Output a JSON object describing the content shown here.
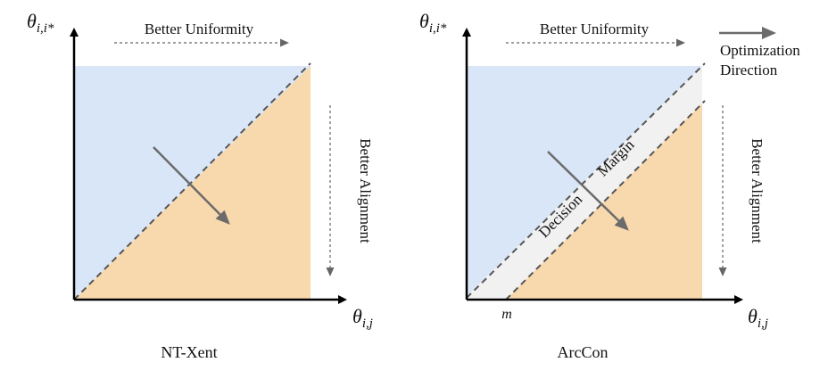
{
  "colors": {
    "upper_region": "#d9e6f7",
    "lower_region": "#f8d8ad",
    "margin_band": "#f1f1f1",
    "arrow": "#6b6b6b",
    "axis": "#000000",
    "dashed": "#555555"
  },
  "left_panel": {
    "caption": "NT-Xent",
    "y_axis_label": {
      "main": "θ",
      "sub": "i,i*"
    },
    "x_axis_label": {
      "main": "θ",
      "sub": "i,j"
    },
    "top_annotation": "Better Uniformity",
    "side_annotation": "Better Alignment"
  },
  "right_panel": {
    "caption": "ArcCon",
    "y_axis_label": {
      "main": "θ",
      "sub": "i,i*"
    },
    "x_axis_label": {
      "main": "θ",
      "sub": "i,j"
    },
    "top_annotation": "Better Uniformity",
    "side_annotation": "Better Alignment",
    "band_label_lower": "Decision",
    "band_label_upper": "Margin",
    "margin_tick_label": "m"
  },
  "legend": {
    "line1": "Optimization",
    "line2": "Direction",
    "icon": "right-arrow-icon"
  }
}
